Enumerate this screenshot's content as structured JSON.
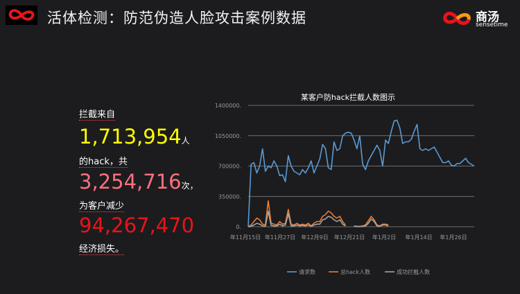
{
  "header": {
    "title": "活体检测：防范伪造人脸攻击案例数据",
    "brand_name": "商汤",
    "brand_sub": "sensetime"
  },
  "stats": {
    "label1": "拦截来自",
    "value1": "1,713,954",
    "unit1": "人",
    "label2": "的hack，共",
    "value2": "3,254,716",
    "unit2": "次，",
    "label3": "为客户减少",
    "value3": "94,267,470",
    "label4": "经济损失。",
    "colors": {
      "value1": "#ffff00",
      "value2": "#ff6f7d",
      "value3": "#e8141b"
    }
  },
  "chart_data": {
    "type": "line",
    "title": "某客户防hack拦截人数图示",
    "ylim": [
      0,
      1400000
    ],
    "yticks": [
      "0.",
      "350000.",
      "700000.",
      "1050000.",
      "1400000."
    ],
    "xticks": [
      "年11月15日",
      "年11月27日",
      "年12月9日",
      "年12月21日",
      "年1月2日",
      "年1月14日",
      "年1月26日"
    ],
    "grid": true,
    "legend_position": "bottom",
    "series": [
      {
        "name": "请求数",
        "color": "#5b9bd5",
        "values": [
          0,
          720000,
          740000,
          620000,
          700000,
          900000,
          640000,
          700000,
          680000,
          760000,
          700000,
          590000,
          600000,
          520000,
          820000,
          700000,
          640000,
          620000,
          600000,
          660000,
          620000,
          680000,
          760000,
          620000,
          700000,
          780000,
          950000,
          900000,
          680000,
          660000,
          980000,
          880000,
          900000,
          1050000,
          1080000,
          1090000,
          1080000,
          1000000,
          900000,
          1050000,
          720000,
          660000,
          760000,
          820000,
          880000,
          940000,
          880000,
          700000,
          1000000,
          960000,
          1100000,
          1220000,
          1230000,
          1140000,
          960000,
          980000,
          980000,
          1010000,
          1100000,
          1180000,
          900000,
          880000,
          900000,
          880000,
          900000,
          920000,
          860000,
          800000,
          740000,
          740000,
          760000,
          710000,
          700000,
          730000,
          730000,
          760000,
          790000,
          740000,
          720000,
          700000
        ]
      },
      {
        "name": "总hack人数",
        "color": "#ed7d31",
        "values": [
          0,
          20000,
          60000,
          100000,
          80000,
          30000,
          20000,
          300000,
          40000,
          30000,
          20000,
          60000,
          30000,
          40000,
          200000,
          30000,
          20000,
          40000,
          20000,
          30000,
          20000,
          40000,
          10000,
          40000,
          60000,
          60000,
          120000,
          140000,
          180000,
          160000,
          120000,
          100000,
          120000,
          60000,
          20000,
          null,
          null,
          10000,
          5000,
          5000,
          10000,
          20000,
          70000,
          120000,
          80000,
          20000,
          10000,
          30000,
          30000,
          20000
        ]
      },
      {
        "name": "成功拦截人数",
        "color": "#a5a5a5",
        "values": [
          0,
          5000,
          20000,
          40000,
          30000,
          10000,
          5000,
          180000,
          15000,
          10000,
          10000,
          30000,
          10000,
          20000,
          150000,
          10000,
          10000,
          20000,
          10000,
          15000,
          10000,
          20000,
          5000,
          20000,
          30000,
          30000,
          80000,
          90000,
          120000,
          110000,
          80000,
          60000,
          80000,
          30000,
          10000,
          null,
          null,
          5000,
          2000,
          2000,
          5000,
          10000,
          40000,
          90000,
          60000,
          10000,
          5000,
          20000,
          20000,
          10000
        ]
      }
    ]
  }
}
